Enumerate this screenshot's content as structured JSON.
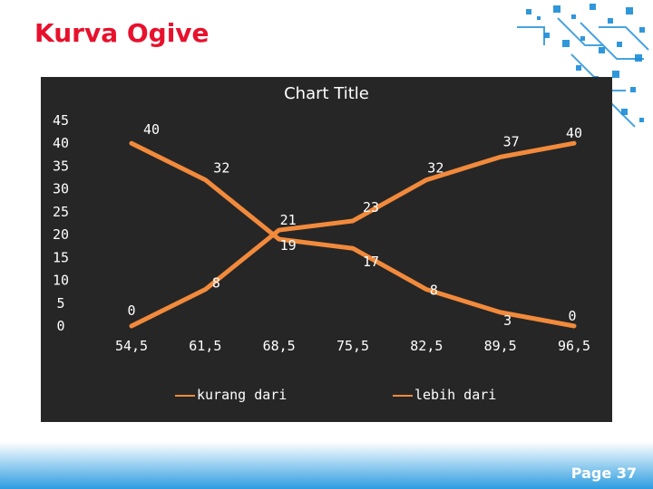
{
  "slide": {
    "title": "Kurva Ogive",
    "page_number": "Page 37"
  },
  "colors": {
    "title": "#e8112d",
    "chart_bg": "#262626",
    "series": "#f28a3c",
    "accent_blue": "#1a8cd8"
  },
  "chart_data": {
    "type": "line",
    "title": "Chart Title",
    "xlabel": "",
    "ylabel": "",
    "categories": [
      "54,5",
      "61,5",
      "68,5",
      "75,5",
      "82,5",
      "89,5",
      "96,5"
    ],
    "yticks": [
      "0",
      "5",
      "10",
      "15",
      "20",
      "25",
      "30",
      "35",
      "40",
      "45"
    ],
    "ylim": [
      0,
      45
    ],
    "grid": false,
    "legend": "bottom",
    "series": [
      {
        "name": "kurang dari",
        "values": [
          0,
          8,
          21,
          23,
          32,
          37,
          40
        ],
        "labels": [
          "0",
          "8",
          "21",
          "23",
          "32",
          "37",
          "40"
        ]
      },
      {
        "name": "lebih dari",
        "values": [
          40,
          32,
          19,
          17,
          8,
          3,
          0
        ],
        "labels": [
          "40",
          "32",
          "19",
          "17",
          "8",
          "3",
          "0"
        ]
      }
    ]
  }
}
